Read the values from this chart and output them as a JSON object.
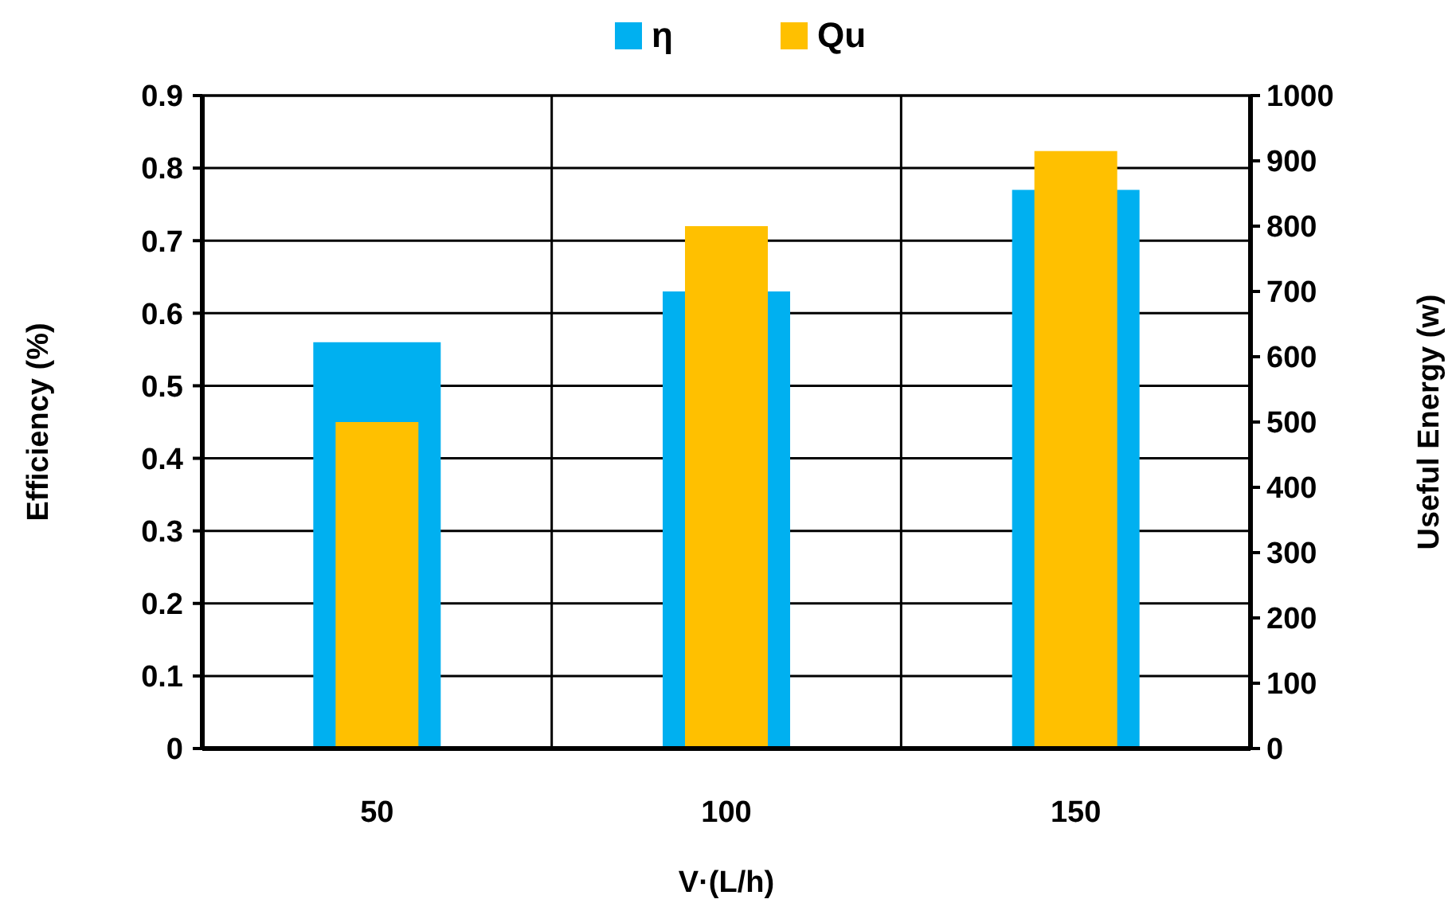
{
  "chart_data": {
    "type": "bar",
    "xlabel": "V·(L/h)",
    "ylabel": "Efficiency (%)",
    "y2label": "Useful Energy (w)",
    "categories": [
      "50",
      "100",
      "150"
    ],
    "series": [
      {
        "name": "η",
        "color": "#00b0f0",
        "values": [
          0.56,
          0.63,
          0.77
        ]
      },
      {
        "name": "Qu",
        "color": "#ffc000",
        "values": [
          500,
          800,
          915
        ],
        "axis": "y2"
      }
    ],
    "ylim": [
      0,
      0.9
    ],
    "yticks": [
      0,
      0.1,
      0.2,
      0.3,
      0.4,
      0.5,
      0.6,
      0.7,
      0.8,
      0.9
    ],
    "y2lim": [
      0,
      1000
    ],
    "y2ticks": [
      0,
      100,
      200,
      300,
      400,
      500,
      600,
      700,
      800,
      900,
      1000
    ],
    "grid": true,
    "legend": "top"
  }
}
